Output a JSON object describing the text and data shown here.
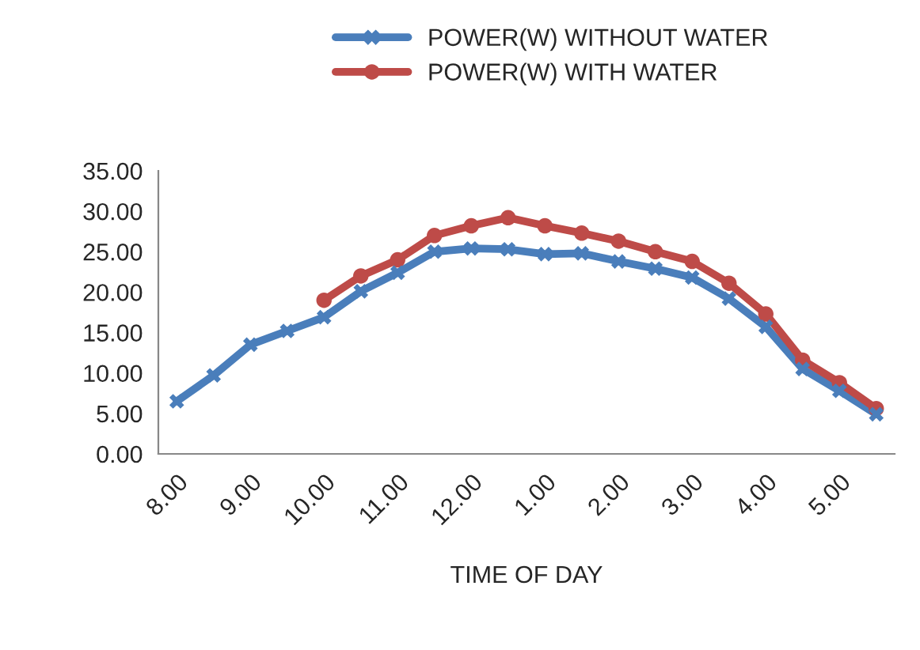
{
  "chart_data": {
    "type": "line",
    "xlabel": "TIME OF DAY",
    "categories": [
      "8.00",
      null,
      "9.00",
      null,
      "10.00",
      null,
      "11.00",
      null,
      "12.00",
      null,
      "1.00",
      null,
      "2.00",
      null,
      "3.00",
      null,
      "4.00",
      null,
      "5.00",
      null
    ],
    "series": [
      {
        "name": "POWER(W) WITHOUT WATER",
        "color": "#4a7ebb",
        "marker": "cross",
        "values": [
          6.5,
          9.7,
          13.5,
          15.2,
          16.9,
          20.1,
          22.4,
          25.0,
          25.4,
          25.3,
          24.7,
          24.8,
          23.8,
          22.9,
          21.8,
          19.2,
          15.7,
          10.5,
          7.8,
          4.9
        ]
      },
      {
        "name": "POWER(W) WITH WATER",
        "color": "#be4b48",
        "marker": "circle",
        "values": [
          null,
          null,
          null,
          null,
          19.0,
          22.0,
          24.0,
          27.0,
          28.2,
          29.2,
          28.2,
          27.3,
          26.3,
          25.0,
          23.8,
          21.1,
          17.3,
          11.6,
          8.8,
          5.6
        ]
      }
    ],
    "ylim": [
      0,
      35
    ],
    "yticks": [
      {
        "value": 0,
        "label": "0.00"
      },
      {
        "value": 5,
        "label": "5.00"
      },
      {
        "value": 10,
        "label": "10.00"
      },
      {
        "value": 15,
        "label": "15.00"
      },
      {
        "value": 20,
        "label": "20.00"
      },
      {
        "value": 25,
        "label": "25.00"
      },
      {
        "value": 30,
        "label": "30.00"
      },
      {
        "value": 35,
        "label": "35.00"
      }
    ],
    "legend": "top",
    "grid": false,
    "line_style": "solid"
  }
}
